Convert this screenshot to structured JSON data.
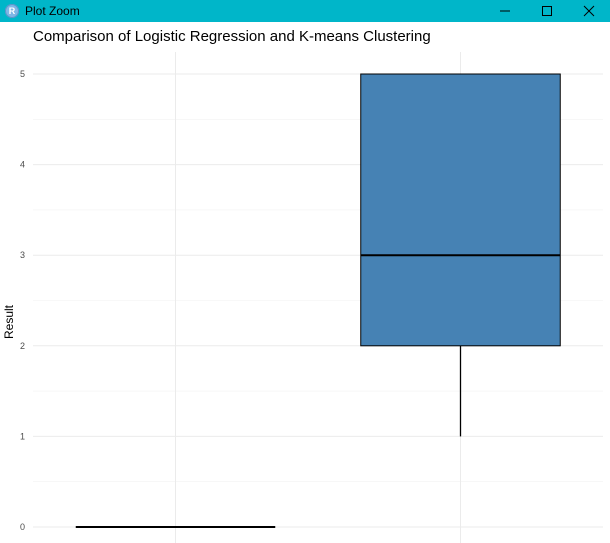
{
  "window": {
    "title": "Plot Zoom",
    "app_icon_letter": "R",
    "titlebar_color": "#00b6c9",
    "controls": [
      "minimize-icon",
      "maximize-icon",
      "close-icon"
    ]
  },
  "chart_data": {
    "type": "boxplot",
    "title": "Comparison of Logistic Regression and K-means Clustering",
    "xlabel": "",
    "ylabel": "Result",
    "ylim": [
      0,
      5
    ],
    "yticks": [
      "0",
      "1",
      "2",
      "3",
      "4",
      "5"
    ],
    "grid": true,
    "fill_color": "#4682b4",
    "boxes": [
      {
        "min": 0,
        "q1": 0,
        "median": 0,
        "q3": 0,
        "max": 0
      },
      {
        "min": 1,
        "q1": 2,
        "median": 3,
        "q3": 5,
        "max": 5
      }
    ]
  }
}
